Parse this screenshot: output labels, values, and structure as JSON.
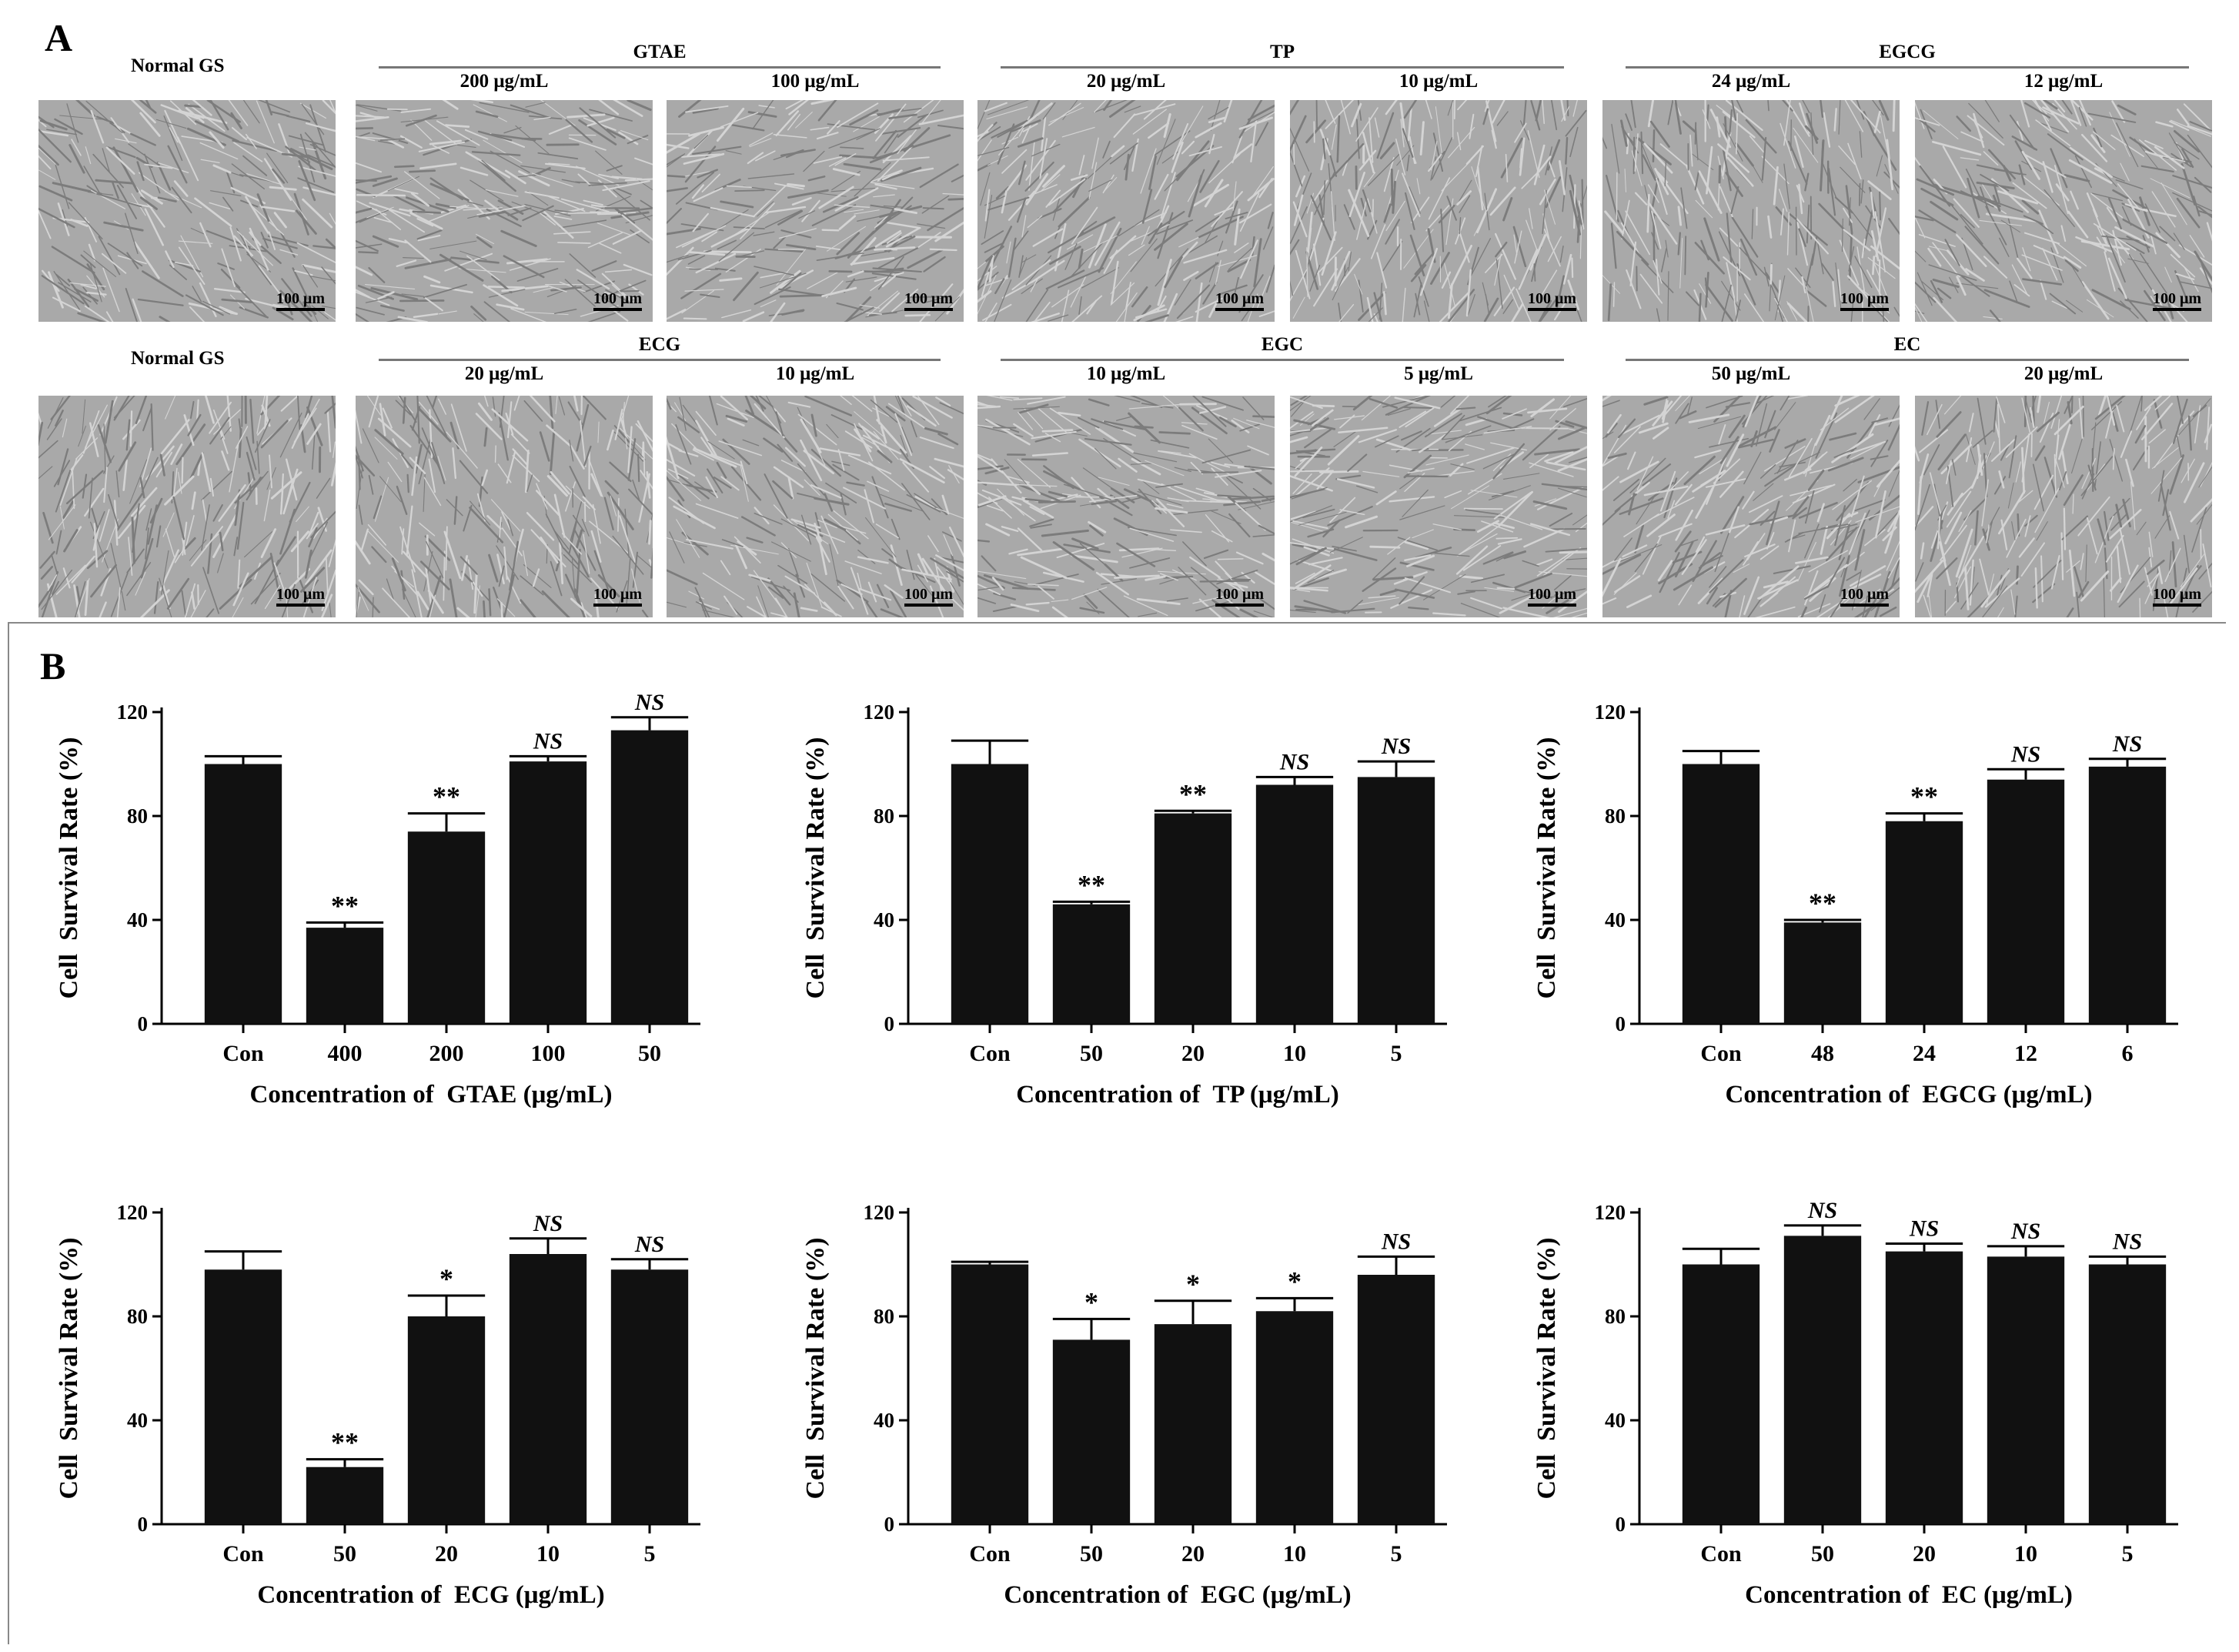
{
  "panel_a": {
    "letter": "A",
    "scalebar_text": "100 μm",
    "rows": [
      {
        "normal_label": "Normal GS",
        "groups": [
          {
            "title": "GTAE",
            "concentrations": [
              "200 μg/mL",
              "100 μg/mL"
            ]
          },
          {
            "title": "TP",
            "concentrations": [
              "20 μg/mL",
              "10 μg/mL"
            ]
          },
          {
            "title": "EGCG",
            "concentrations": [
              "24 μg/mL",
              "12 μg/mL"
            ]
          }
        ]
      },
      {
        "normal_label": "Normal GS",
        "groups": [
          {
            "title": "ECG",
            "concentrations": [
              "20 μg/mL",
              "10 μg/mL"
            ]
          },
          {
            "title": "EGC",
            "concentrations": [
              "10 μg/mL",
              "5 μg/mL"
            ]
          },
          {
            "title": "EC",
            "concentrations": [
              "50 μg/mL",
              "20 μg/mL"
            ]
          }
        ]
      }
    ]
  },
  "panel_b": {
    "letter": "B"
  },
  "chart_data": [
    {
      "type": "bar",
      "categories": [
        "Con",
        "400",
        "200",
        "100",
        "50"
      ],
      "values": [
        100,
        37,
        74,
        101,
        113
      ],
      "errors": [
        3,
        2,
        7,
        2,
        5
      ],
      "significance": [
        "",
        "**",
        "**",
        "NS",
        "NS"
      ],
      "xlabel": "Concentration of  GTAE (μg/mL)",
      "ylabel": "Cell  Survival Rate (%)",
      "ylim": [
        0,
        120
      ],
      "yticks": [
        "0",
        "40",
        "80",
        "120"
      ],
      "bar_color": "#111111"
    },
    {
      "type": "bar",
      "categories": [
        "Con",
        "50",
        "20",
        "10",
        "5"
      ],
      "values": [
        100,
        46,
        81,
        92,
        95
      ],
      "errors": [
        9,
        1,
        1,
        3,
        6
      ],
      "significance": [
        "",
        "**",
        "**",
        "NS",
        "NS"
      ],
      "xlabel": "Concentration of  TP (μg/mL)",
      "ylabel": "Cell  Survival Rate (%)",
      "ylim": [
        0,
        120
      ],
      "yticks": [
        "0",
        "40",
        "80",
        "120"
      ],
      "bar_color": "#111111"
    },
    {
      "type": "bar",
      "categories": [
        "Con",
        "48",
        "24",
        "12",
        "6"
      ],
      "values": [
        100,
        39,
        78,
        94,
        99
      ],
      "errors": [
        5,
        1,
        3,
        4,
        3
      ],
      "significance": [
        "",
        "**",
        "**",
        "NS",
        "NS"
      ],
      "xlabel": "Concentration of  EGCG (μg/mL)",
      "ylabel": "Cell  Survival Rate (%)",
      "ylim": [
        0,
        120
      ],
      "yticks": [
        "0",
        "40",
        "80",
        "120"
      ],
      "bar_color": "#111111"
    },
    {
      "type": "bar",
      "categories": [
        "Con",
        "50",
        "20",
        "10",
        "5"
      ],
      "values": [
        98,
        22,
        80,
        104,
        98
      ],
      "errors": [
        7,
        3,
        8,
        6,
        4
      ],
      "significance": [
        "",
        "**",
        "*",
        "NS",
        "NS"
      ],
      "xlabel": "Concentration of  ECG (μg/mL)",
      "ylabel": "Cell  Survival Rate (%)",
      "ylim": [
        0,
        120
      ],
      "yticks": [
        "0",
        "40",
        "80",
        "120"
      ],
      "bar_color": "#111111"
    },
    {
      "type": "bar",
      "categories": [
        "Con",
        "50",
        "20",
        "10",
        "5"
      ],
      "values": [
        100,
        71,
        77,
        82,
        96
      ],
      "errors": [
        1,
        8,
        9,
        5,
        7
      ],
      "significance": [
        "",
        "*",
        "*",
        "*",
        "NS"
      ],
      "xlabel": "Concentration of  EGC (μg/mL)",
      "ylabel": "Cell  Survival Rate (%)",
      "ylim": [
        0,
        120
      ],
      "yticks": [
        "0",
        "40",
        "80",
        "120"
      ],
      "bar_color": "#111111"
    },
    {
      "type": "bar",
      "categories": [
        "Con",
        "50",
        "20",
        "10",
        "5"
      ],
      "values": [
        100,
        111,
        105,
        103,
        100
      ],
      "errors": [
        6,
        4,
        3,
        4,
        3
      ],
      "significance": [
        "",
        "NS",
        "NS",
        "NS",
        "NS"
      ],
      "xlabel": "Concentration of  EC (μg/mL)",
      "ylabel": "Cell  Survival Rate (%)",
      "ylim": [
        0,
        120
      ],
      "yticks": [
        "0",
        "40",
        "80",
        "120"
      ],
      "bar_color": "#111111"
    }
  ]
}
